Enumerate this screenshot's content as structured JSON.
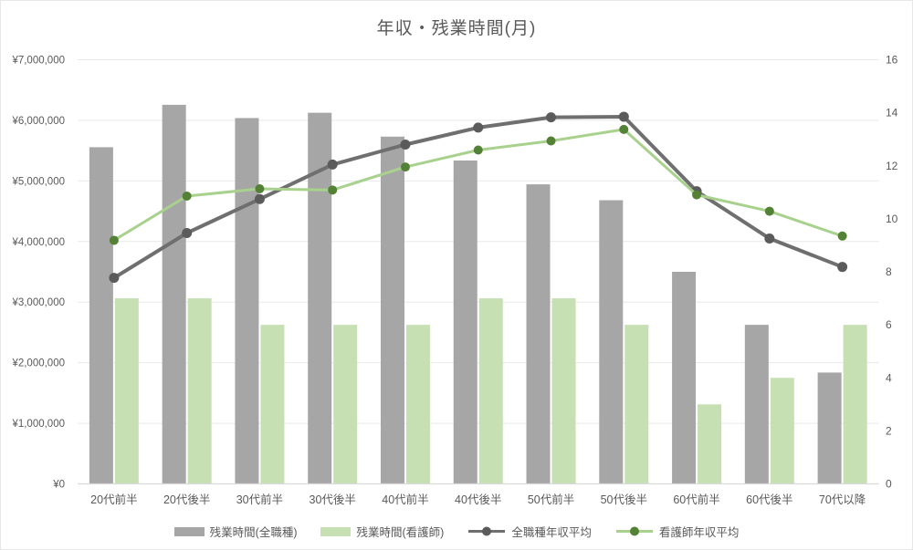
{
  "chart_data": {
    "type": "combo",
    "title": "年収・残業時間(月)",
    "categories": [
      "20代前半",
      "20代後半",
      "30代前半",
      "30代後半",
      "40代前半",
      "40代後半",
      "50代前半",
      "50代後半",
      "60代前半",
      "60代後半",
      "70代以降"
    ],
    "left_axis": {
      "min": 0,
      "max": 7000000,
      "ticks": [
        "¥0",
        "¥1,000,000",
        "¥2,000,000",
        "¥3,000,000",
        "¥4,000,000",
        "¥5,000,000",
        "¥6,000,000",
        "¥7,000,000"
      ]
    },
    "right_axis": {
      "min": 0,
      "max": 16,
      "ticks": [
        "0",
        "2",
        "4",
        "6",
        "8",
        "10",
        "12",
        "14",
        "16"
      ]
    },
    "grid": true,
    "legend_position": "bottom",
    "series": [
      {
        "name": "残業時間(全職種)",
        "type": "bar",
        "axis": "right",
        "color": "#a6a6a6",
        "values": [
          12.7,
          14.3,
          13.8,
          14.0,
          13.1,
          12.2,
          11.3,
          10.7,
          8.0,
          6.0,
          4.2
        ]
      },
      {
        "name": "残業時間(看護師)",
        "type": "bar",
        "axis": "right",
        "color": "#c6e0b4",
        "values": [
          7,
          7,
          6,
          6,
          6,
          7,
          7,
          6,
          3,
          4,
          6
        ]
      },
      {
        "name": "全職種年収平均",
        "type": "line",
        "axis": "left",
        "color": "#6f6f6f",
        "marker_color": "#5b5b5b",
        "values": [
          3400000,
          4140000,
          4700000,
          5270000,
          5600000,
          5880000,
          6050000,
          6060000,
          4830000,
          4050000,
          3580000
        ]
      },
      {
        "name": "看護師年収平均",
        "type": "line",
        "axis": "left",
        "color": "#a9d18e",
        "marker_color": "#538135",
        "values": [
          4020000,
          4750000,
          4870000,
          4850000,
          5230000,
          5510000,
          5660000,
          5850000,
          4770000,
          4500000,
          4090000
        ]
      }
    ],
    "colors": {
      "text": "#595959",
      "gridline": "#e9e9e9",
      "axis_line": "#d9d9d9"
    }
  }
}
